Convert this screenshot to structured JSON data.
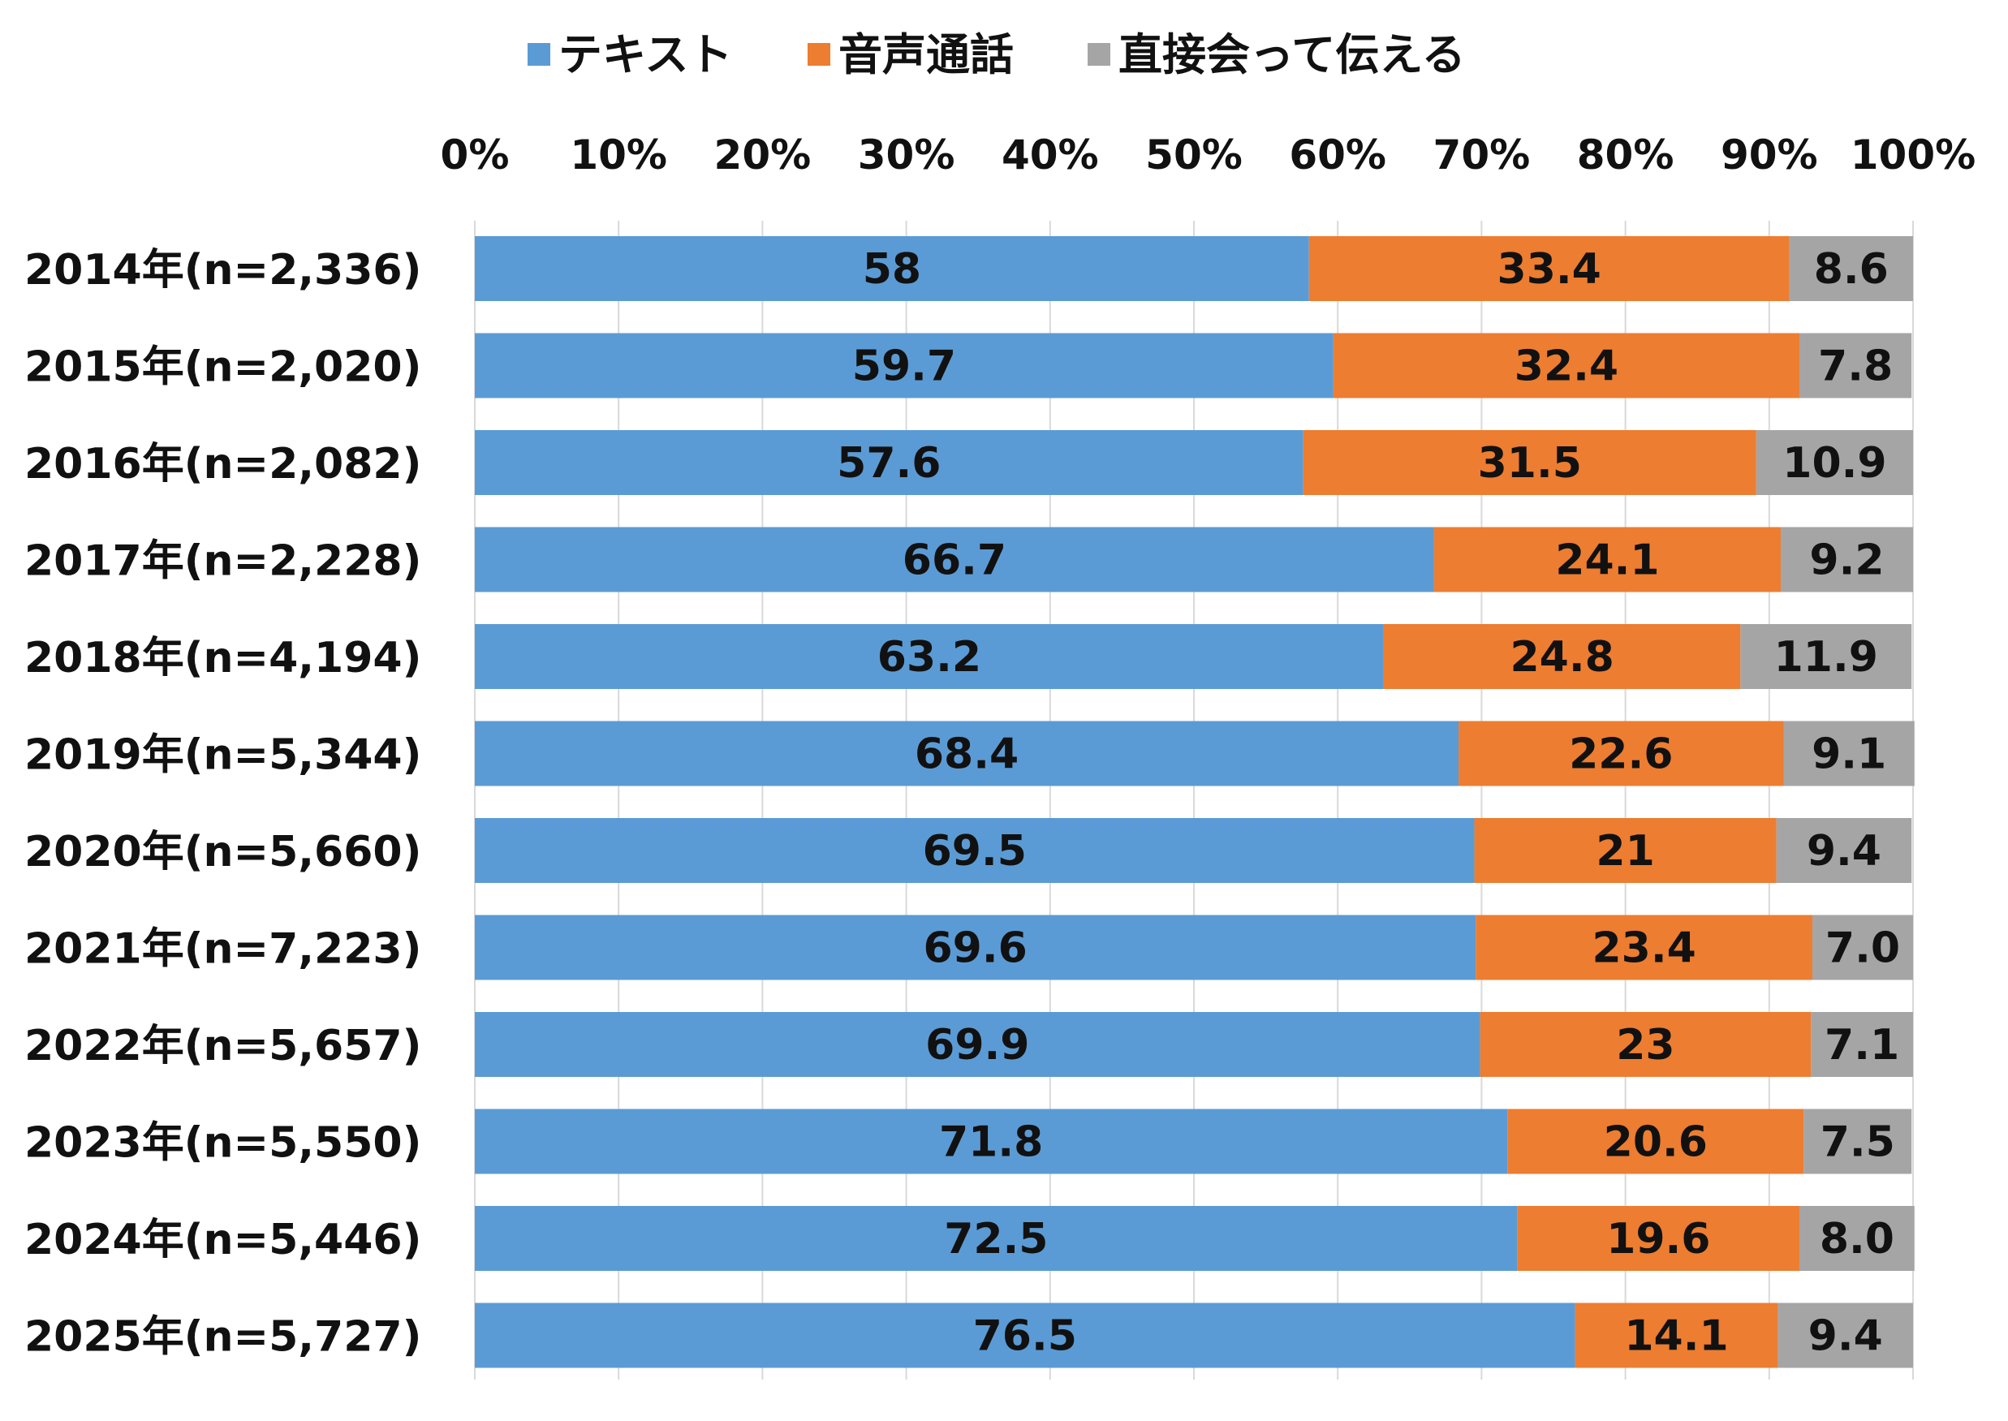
{
  "chart_data": {
    "type": "bar",
    "orientation": "horizontal",
    "stacked": true,
    "percent_stacked": true,
    "categories": [
      "2014年(n=2,336)",
      "2015年(n=2,020)",
      "2016年(n=2,082)",
      "2017年(n=2,228)",
      "2018年(n=4,194)",
      "2019年(n=5,344)",
      "2020年(n=5,660)",
      "2021年(n=7,223)",
      "2022年(n=5,657)",
      "2023年(n=5,550)",
      "2024年(n=5,446)",
      "2025年(n=5,727)"
    ],
    "series": [
      {
        "name": "テキスト",
        "color": "#5b9bd5",
        "values": [
          58,
          59.7,
          57.6,
          66.7,
          63.2,
          68.4,
          69.5,
          69.6,
          69.9,
          71.8,
          72.5,
          76.5
        ],
        "labels": [
          "58",
          "59.7",
          "57.6",
          "66.7",
          "63.2",
          "68.4",
          "69.5",
          "69.6",
          "69.9",
          "71.8",
          "72.5",
          "76.5"
        ]
      },
      {
        "name": "音声通話",
        "color": "#ed7d31",
        "values": [
          33.4,
          32.4,
          31.5,
          24.1,
          24.8,
          22.6,
          21,
          23.4,
          23,
          20.6,
          19.6,
          14.1
        ],
        "labels": [
          "33.4",
          "32.4",
          "31.5",
          "24.1",
          "24.8",
          "22.6",
          "21",
          "23.4",
          "23",
          "20.6",
          "19.6",
          "14.1"
        ]
      },
      {
        "name": "直接会って伝える",
        "color": "#a5a5a5",
        "values": [
          8.6,
          7.8,
          10.9,
          9.2,
          11.9,
          9.1,
          9.4,
          7.0,
          7.1,
          7.5,
          8.0,
          9.4
        ],
        "labels": [
          "8.6",
          "7.8",
          "10.9",
          "9.2",
          "11.9",
          "9.1",
          "9.4",
          "7.0",
          "7.1",
          "7.5",
          "8.0",
          "9.4"
        ]
      }
    ],
    "x_ticks": [
      "0%",
      "10%",
      "20%",
      "30%",
      "40%",
      "50%",
      "60%",
      "70%",
      "80%",
      "90%",
      "100%"
    ],
    "xlim": [
      0,
      100
    ],
    "x_axis_position": "top",
    "grid": true,
    "legend_position": "top"
  }
}
